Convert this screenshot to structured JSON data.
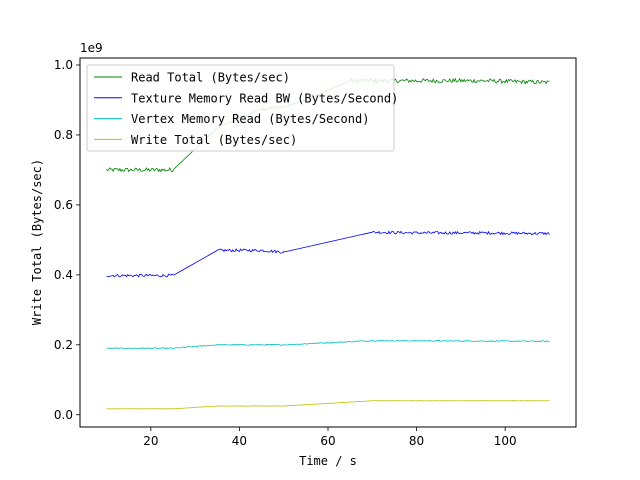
{
  "chart_data": {
    "type": "line",
    "title": "",
    "xlabel": "Time / s",
    "ylabel": "Write Total (Bytes/sec)",
    "y_offset_label": "1e9",
    "xlim": [
      4,
      116
    ],
    "ylim": [
      -0.035,
      1.02
    ],
    "x_ticks": [
      20,
      40,
      60,
      80,
      100
    ],
    "y_ticks": [
      0.0,
      0.2,
      0.4,
      0.6,
      0.8,
      1.0
    ],
    "y_tick_labels": [
      "0.0",
      "0.2",
      "0.4",
      "0.6",
      "0.8",
      "1.0"
    ],
    "grid": false,
    "legend_position": "top-left",
    "series": [
      {
        "name": "Read Total (Bytes/sec)",
        "color": "#008000",
        "points": [
          [
            10,
            0.7
          ],
          [
            25,
            0.7
          ],
          [
            35,
            0.82
          ],
          [
            45,
            0.875
          ],
          [
            50,
            0.88
          ],
          [
            55,
            0.9
          ],
          [
            65,
            0.955
          ],
          [
            70,
            0.955
          ],
          [
            80,
            0.955
          ],
          [
            95,
            0.955
          ],
          [
            110,
            0.95
          ]
        ],
        "noise": 0.006
      },
      {
        "name": "Texture Memory Read BW (Bytes/Second)",
        "color": "#0000ff",
        "points": [
          [
            10,
            0.398
          ],
          [
            25,
            0.398
          ],
          [
            35,
            0.47
          ],
          [
            45,
            0.47
          ],
          [
            50,
            0.465
          ],
          [
            70,
            0.522
          ],
          [
            80,
            0.52
          ],
          [
            95,
            0.52
          ],
          [
            110,
            0.518
          ]
        ],
        "noise": 0.004
      },
      {
        "name": "Vertex Memory Read (Bytes/Second)",
        "color": "#00bfbf",
        "points": [
          [
            10,
            0.19
          ],
          [
            25,
            0.19
          ],
          [
            35,
            0.2
          ],
          [
            50,
            0.2
          ],
          [
            70,
            0.212
          ],
          [
            110,
            0.21
          ]
        ],
        "noise": 0.0015
      },
      {
        "name": "Write Total (Bytes/sec)",
        "color": "#bfbf00",
        "points": [
          [
            10,
            0.017
          ],
          [
            25,
            0.017
          ],
          [
            35,
            0.025
          ],
          [
            50,
            0.025
          ],
          [
            70,
            0.04
          ],
          [
            110,
            0.04
          ]
        ],
        "noise": 0.0004
      }
    ]
  }
}
